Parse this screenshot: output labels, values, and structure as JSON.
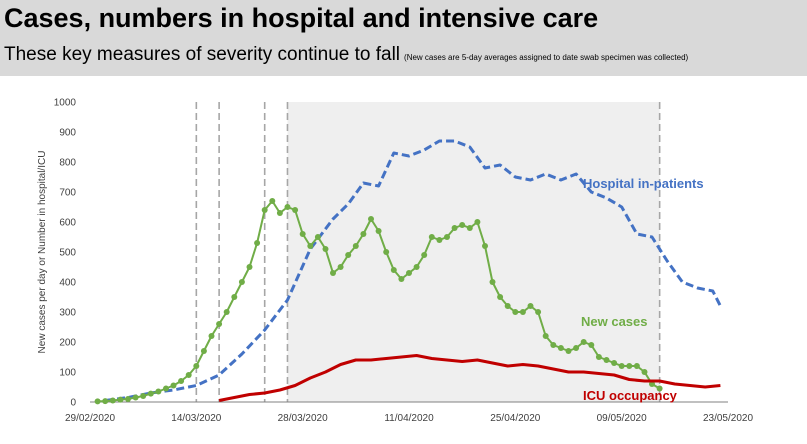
{
  "header": {
    "title": "Cases, numbers in hospital and intensive care",
    "subtitle": "These key measures of severity continue to fall",
    "note": "(New cases are 5-day averages assigned to date swab specimen was collected)"
  },
  "chart_data": {
    "type": "line",
    "ylabel": "New cases per day or Number in hospital/ICU",
    "ylim": [
      0,
      1000
    ],
    "yticks": [
      0,
      100,
      200,
      300,
      400,
      500,
      600,
      700,
      800,
      900,
      1000
    ],
    "xlim": [
      "2020-02-29",
      "2020-05-23"
    ],
    "xticks": [
      "29/02/2020",
      "14/03/2020",
      "28/03/2020",
      "11/04/2020",
      "25/04/2020",
      "09/05/2020",
      "23/05/2020"
    ],
    "vlines": [
      "2020-03-14",
      "2020-03-17",
      "2020-03-23",
      "2020-03-26",
      "2020-05-14"
    ],
    "shaded_region": [
      "2020-03-26",
      "2020-05-14"
    ],
    "series": [
      {
        "name": "Hospital in-patients",
        "color": "#4472c4",
        "style": "dashed",
        "x": [
          "2020-03-02",
          "2020-03-05",
          "2020-03-08",
          "2020-03-11",
          "2020-03-14",
          "2020-03-17",
          "2020-03-20",
          "2020-03-23",
          "2020-03-26",
          "2020-03-29",
          "2020-04-01",
          "2020-04-03",
          "2020-04-05",
          "2020-04-07",
          "2020-04-09",
          "2020-04-11",
          "2020-04-13",
          "2020-04-15",
          "2020-04-17",
          "2020-04-19",
          "2020-04-21",
          "2020-04-23",
          "2020-04-25",
          "2020-04-27",
          "2020-04-29",
          "2020-05-01",
          "2020-05-03",
          "2020-05-05",
          "2020-05-07",
          "2020-05-09",
          "2020-05-11",
          "2020-05-13",
          "2020-05-15",
          "2020-05-17",
          "2020-05-19",
          "2020-05-21",
          "2020-05-22"
        ],
        "y": [
          5,
          15,
          30,
          40,
          55,
          90,
          160,
          240,
          340,
          510,
          610,
          660,
          730,
          720,
          830,
          820,
          840,
          870,
          870,
          850,
          780,
          790,
          750,
          740,
          760,
          740,
          760,
          700,
          680,
          650,
          560,
          550,
          470,
          400,
          380,
          370,
          320
        ]
      },
      {
        "name": "New cases",
        "color": "#70ad47",
        "style": "solid-markers",
        "x": [
          "2020-03-01",
          "2020-03-02",
          "2020-03-03",
          "2020-03-04",
          "2020-03-05",
          "2020-03-06",
          "2020-03-07",
          "2020-03-08",
          "2020-03-09",
          "2020-03-10",
          "2020-03-11",
          "2020-03-12",
          "2020-03-13",
          "2020-03-14",
          "2020-03-15",
          "2020-03-16",
          "2020-03-17",
          "2020-03-18",
          "2020-03-19",
          "2020-03-20",
          "2020-03-21",
          "2020-03-22",
          "2020-03-23",
          "2020-03-24",
          "2020-03-25",
          "2020-03-26",
          "2020-03-27",
          "2020-03-28",
          "2020-03-29",
          "2020-03-30",
          "2020-03-31",
          "2020-04-01",
          "2020-04-02",
          "2020-04-03",
          "2020-04-04",
          "2020-04-05",
          "2020-04-06",
          "2020-04-07",
          "2020-04-08",
          "2020-04-09",
          "2020-04-10",
          "2020-04-11",
          "2020-04-12",
          "2020-04-13",
          "2020-04-14",
          "2020-04-15",
          "2020-04-16",
          "2020-04-17",
          "2020-04-18",
          "2020-04-19",
          "2020-04-20",
          "2020-04-21",
          "2020-04-22",
          "2020-04-23",
          "2020-04-24",
          "2020-04-25",
          "2020-04-26",
          "2020-04-27",
          "2020-04-28",
          "2020-04-29",
          "2020-04-30",
          "2020-05-01",
          "2020-05-02",
          "2020-05-03",
          "2020-05-04",
          "2020-05-05",
          "2020-05-06",
          "2020-05-07",
          "2020-05-08",
          "2020-05-09",
          "2020-05-10",
          "2020-05-11",
          "2020-05-12",
          "2020-05-13",
          "2020-05-14"
        ],
        "y": [
          2,
          3,
          5,
          8,
          10,
          15,
          20,
          28,
          35,
          45,
          55,
          70,
          90,
          120,
          170,
          220,
          260,
          300,
          350,
          400,
          450,
          530,
          640,
          670,
          630,
          650,
          640,
          560,
          520,
          550,
          510,
          430,
          450,
          490,
          520,
          560,
          610,
          570,
          500,
          440,
          410,
          430,
          450,
          490,
          550,
          540,
          550,
          580,
          590,
          580,
          600,
          520,
          400,
          350,
          320,
          300,
          300,
          320,
          300,
          220,
          190,
          180,
          170,
          180,
          200,
          190,
          150,
          140,
          130,
          120,
          120,
          120,
          100,
          60,
          45
        ]
      },
      {
        "name": "ICU occupancy",
        "color": "#c00000",
        "style": "solid",
        "x": [
          "2020-03-17",
          "2020-03-19",
          "2020-03-21",
          "2020-03-23",
          "2020-03-25",
          "2020-03-27",
          "2020-03-29",
          "2020-03-31",
          "2020-04-02",
          "2020-04-04",
          "2020-04-06",
          "2020-04-08",
          "2020-04-10",
          "2020-04-12",
          "2020-04-14",
          "2020-04-16",
          "2020-04-18",
          "2020-04-20",
          "2020-04-22",
          "2020-04-24",
          "2020-04-26",
          "2020-04-28",
          "2020-04-30",
          "2020-05-02",
          "2020-05-04",
          "2020-05-06",
          "2020-05-08",
          "2020-05-10",
          "2020-05-12",
          "2020-05-14",
          "2020-05-16",
          "2020-05-18",
          "2020-05-20",
          "2020-05-22"
        ],
        "y": [
          5,
          15,
          25,
          30,
          40,
          55,
          80,
          100,
          125,
          140,
          140,
          145,
          150,
          155,
          145,
          140,
          135,
          140,
          130,
          120,
          125,
          120,
          110,
          100,
          100,
          95,
          90,
          75,
          70,
          70,
          60,
          55,
          50,
          55
        ]
      }
    ]
  }
}
